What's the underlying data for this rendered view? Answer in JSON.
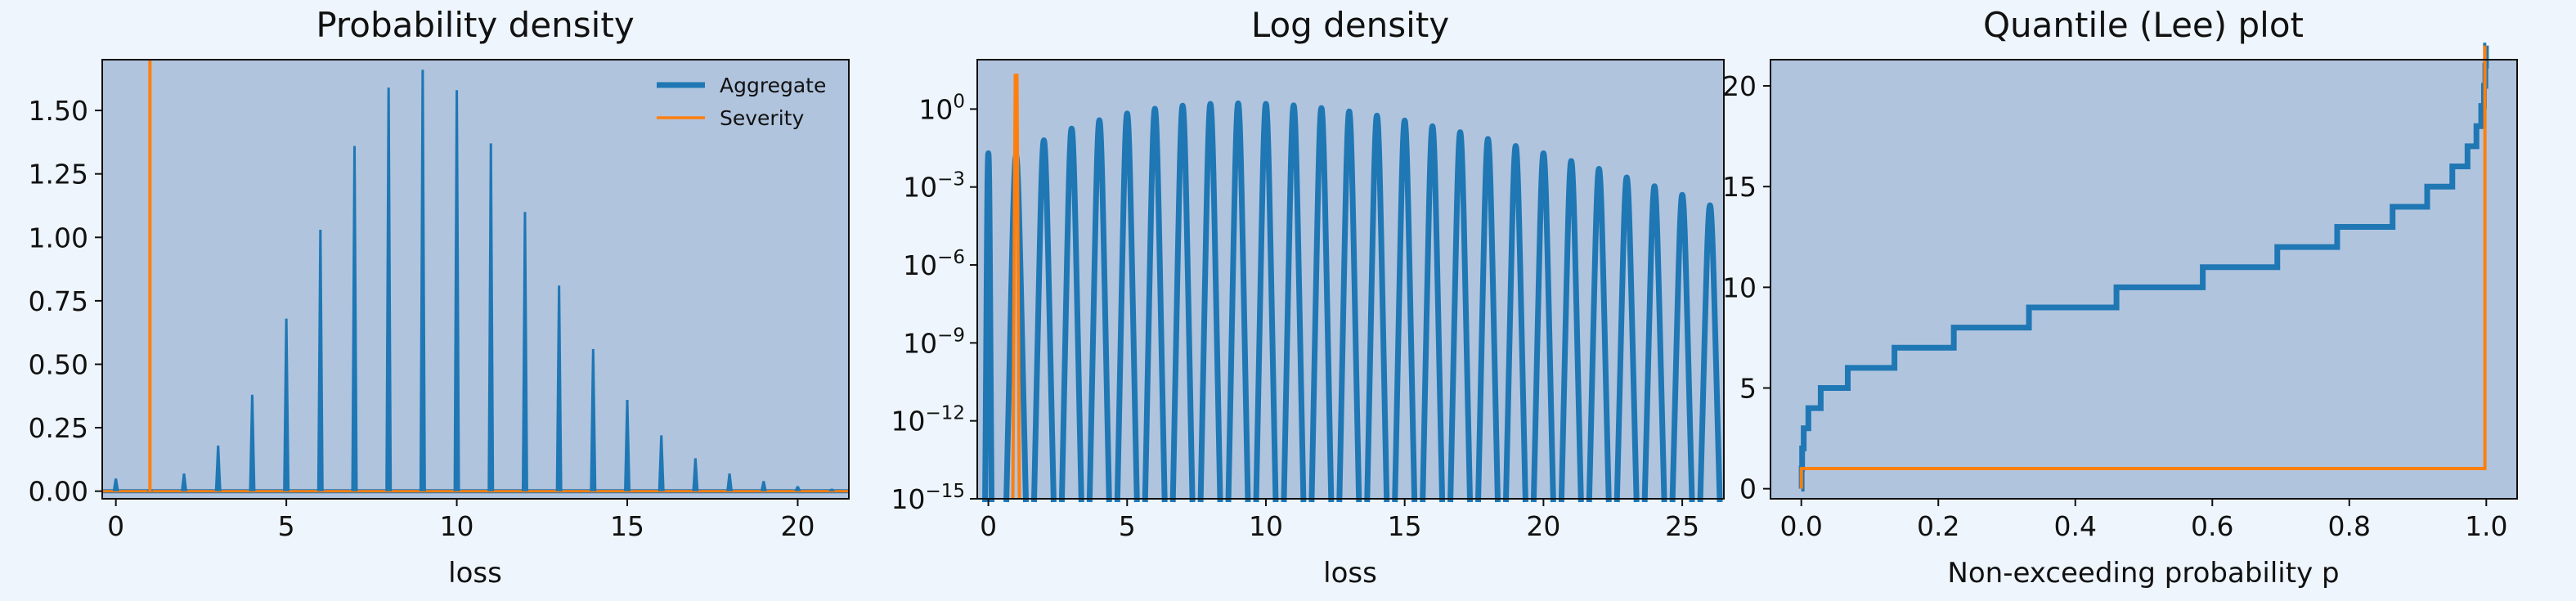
{
  "colors": {
    "figure_bg": "#eef5fc",
    "axes_bg": "#b0c4de",
    "aggregate": "#1f77b4",
    "severity": "#ff7f0e",
    "axis": "#111111"
  },
  "chart_data": [
    {
      "type": "line",
      "title": "Probability density",
      "xlabel": "loss",
      "ylabel": "",
      "xlim": [
        -0.4,
        21.5
      ],
      "ylim": [
        -0.03,
        1.7
      ],
      "xticks": [
        0,
        5,
        10,
        15,
        20
      ],
      "xtick_labels": [
        "0",
        "5",
        "10",
        "15",
        "20"
      ],
      "yticks": [
        0.0,
        0.25,
        0.5,
        0.75,
        1.0,
        1.25,
        1.5
      ],
      "ytick_labels": [
        "0.00",
        "0.25",
        "0.50",
        "0.75",
        "1.00",
        "1.25",
        "1.50"
      ],
      "legend": {
        "placement": "top-right",
        "entries": [
          "Aggregate",
          "Severity"
        ]
      },
      "series": [
        {
          "name": "Aggregate",
          "kind": "spikes",
          "x": [
            0,
            1,
            2,
            3,
            4,
            5,
            6,
            7,
            8,
            9,
            10,
            11,
            12,
            13,
            14,
            15,
            16,
            17,
            18,
            19,
            20,
            21
          ],
          "y": [
            0.05,
            0.01,
            0.07,
            0.18,
            0.38,
            0.68,
            1.03,
            1.36,
            1.59,
            1.66,
            1.58,
            1.37,
            1.1,
            0.81,
            0.56,
            0.36,
            0.22,
            0.13,
            0.07,
            0.04,
            0.02,
            0.01
          ]
        },
        {
          "name": "Severity",
          "kind": "spikes",
          "x": [
            1
          ],
          "y": [
            1.75
          ]
        }
      ],
      "grid": false
    },
    {
      "type": "line",
      "title": "Log density",
      "xlabel": "loss",
      "ylabel": "",
      "yscale": "log",
      "xlim": [
        -0.4,
        26.5
      ],
      "ylim_log10": [
        -15,
        1.9
      ],
      "xticks": [
        0,
        5,
        10,
        15,
        20,
        25
      ],
      "xtick_labels": [
        "0",
        "5",
        "10",
        "15",
        "20",
        "25"
      ],
      "yticks_log10": [
        0,
        -3,
        -6,
        -9,
        -12,
        -15
      ],
      "ytick_labels": [
        "10^0",
        "10^−3",
        "10^−6",
        "10^−9",
        "10^−12",
        "10^−15"
      ],
      "series": [
        {
          "name": "Aggregate",
          "kind": "log-spikes",
          "x": [
            0,
            1,
            2,
            3,
            4,
            5,
            6,
            7,
            8,
            9,
            10,
            11,
            12,
            13,
            14,
            15,
            16,
            17,
            18,
            19,
            20,
            21,
            22,
            23,
            24,
            25,
            26
          ],
          "y_log10": [
            -1.7,
            -1.8,
            -1.2,
            -0.75,
            -0.43,
            -0.17,
            0.01,
            0.13,
            0.2,
            0.22,
            0.2,
            0.14,
            0.04,
            -0.09,
            -0.25,
            -0.44,
            -0.66,
            -0.89,
            -1.15,
            -1.42,
            -1.7,
            -2.0,
            -2.3,
            -2.63,
            -2.97,
            -3.3,
            -3.7
          ]
        },
        {
          "name": "Severity",
          "kind": "log-spikes",
          "x": [
            1
          ],
          "y_log10": [
            1.3
          ]
        }
      ],
      "grid": false
    },
    {
      "type": "line",
      "title": "Quantile (Lee) plot",
      "xlabel": "Non-exceeding probability p",
      "ylabel": "",
      "xlim": [
        -0.045,
        1.045
      ],
      "ylim": [
        -0.5,
        21.3
      ],
      "xticks": [
        0.0,
        0.2,
        0.4,
        0.6,
        0.8,
        1.0
      ],
      "xtick_labels": [
        "0.0",
        "0.2",
        "0.4",
        "0.6",
        "0.8",
        "1.0"
      ],
      "yticks": [
        0,
        5,
        10,
        15,
        20
      ],
      "ytick_labels": [
        "0",
        "5",
        "10",
        "15",
        "20"
      ],
      "series": [
        {
          "name": "Aggregate",
          "kind": "step",
          "p": [
            0.0,
            0.0005,
            0.0012,
            0.0035,
            0.0103,
            0.0283,
            0.0678,
            0.136,
            0.2226,
            0.3323,
            0.4601,
            0.5861,
            0.6949,
            0.7823,
            0.8632,
            0.9137,
            0.9504,
            0.9726,
            0.9856,
            0.9926,
            0.9966,
            0.9986,
            0.9995,
            1.0
          ],
          "value": [
            0,
            1,
            2,
            3,
            4,
            5,
            6,
            7,
            8,
            9,
            10,
            11,
            12,
            13,
            14,
            15,
            16,
            17,
            18,
            19,
            20,
            21,
            22,
            22
          ]
        },
        {
          "name": "Severity",
          "kind": "step",
          "p": [
            0.0,
            0.0,
            0.998,
            0.998
          ],
          "value": [
            0,
            1,
            1,
            22
          ]
        }
      ],
      "grid": false
    }
  ]
}
